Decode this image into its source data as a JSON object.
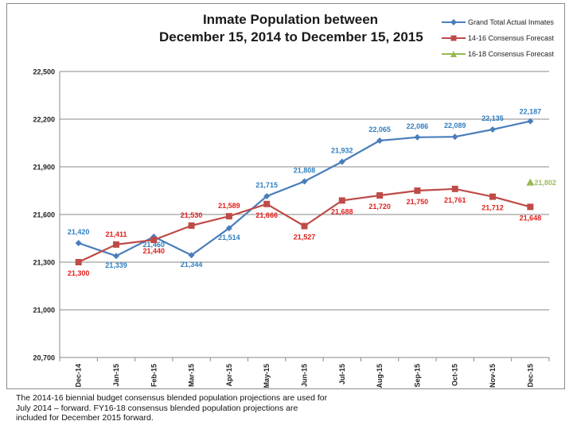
{
  "chart_data": {
    "type": "line",
    "title_lines": [
      "Inmate Population between",
      "December 15, 2014 to December 15, 2015"
    ],
    "categories": [
      "Dec-14",
      "Jan-15",
      "Feb-15",
      "Mar-15",
      "Apr-15",
      "May-15",
      "Jun-15",
      "Jul-15",
      "Aug-15",
      "Sep-15",
      "Oct-15",
      "Nov-15",
      "Dec-15"
    ],
    "ylim": [
      20700,
      22500
    ],
    "yticks": [
      20700,
      21000,
      21300,
      21600,
      21900,
      22200,
      22500
    ],
    "ytick_labels": [
      "20,700",
      "21,000",
      "21,300",
      "21,600",
      "21,900",
      "22,200",
      "22,500"
    ],
    "grid": "horizontal",
    "legend_position": "top-right",
    "series": [
      {
        "name": "Grand Total Actual Inmates",
        "color": "#4a7ebb",
        "marker": "diamond",
        "values": [
          21420,
          21339,
          21460,
          21344,
          21514,
          21715,
          21808,
          21932,
          22065,
          22086,
          22089,
          22135,
          22187
        ],
        "labels": [
          "21,420",
          "21,339",
          "21,460",
          "21,344",
          "21,514",
          "21,715",
          "21,808",
          "21,932",
          "22,065",
          "22,086",
          "22,089",
          "22,135",
          "22,187"
        ],
        "label_color": "#2f7fc1"
      },
      {
        "name": "14-16 Consensus Forecast",
        "color": "#be4b48",
        "marker": "square",
        "values": [
          21300,
          21411,
          21440,
          21530,
          21589,
          21666,
          21527,
          21688,
          21720,
          21750,
          21761,
          21712,
          21648
        ],
        "labels": [
          "21,300",
          "21,411",
          "21,440",
          "21,530",
          "21,589",
          "21,666",
          "21,527",
          "21,688",
          "21,720",
          "21,750",
          "21,761",
          "21,712",
          "21,648"
        ],
        "label_color": "#e0201b"
      },
      {
        "name": "16-18 Consensus Forecast",
        "color": "#98b954",
        "marker": "triangle",
        "values": [
          null,
          null,
          null,
          null,
          null,
          null,
          null,
          null,
          null,
          null,
          null,
          null,
          21802
        ],
        "labels": [
          null,
          null,
          null,
          null,
          null,
          null,
          null,
          null,
          null,
          null,
          null,
          null,
          "21,802"
        ],
        "label_color": "#9bbb59"
      }
    ]
  },
  "footnote": [
    "The 2014-16 biennial budget consensus blended population projections are used for",
    "July 2014 – forward.  FY16-18 consensus blended population projections are",
    "included for December 2015 forward."
  ]
}
